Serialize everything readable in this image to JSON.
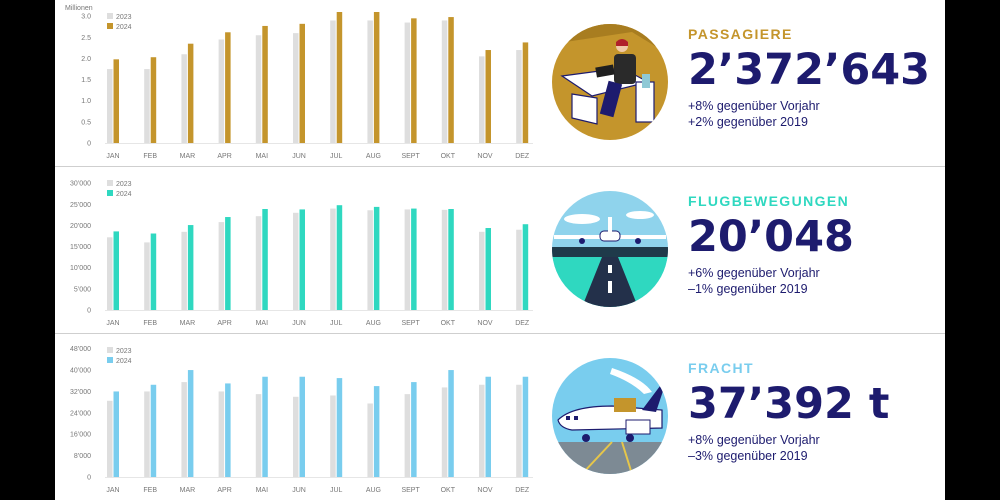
{
  "colors": {
    "year2023": "#dedede",
    "passagiere": "#c4952c",
    "flugbewegungen": "#2fd8c0",
    "fracht": "#79cdee",
    "navy": "#1d1b6e"
  },
  "panels": [
    {
      "kpi": {
        "title": "PASSAGIERE",
        "value": "2’372’643",
        "line1": "+8% gegenüber Vorjahr",
        "line2": "+2% gegenüber 2019"
      }
    },
    {
      "kpi": {
        "title": "FLUGBEWEGUNGEN",
        "value": "20’048",
        "line1": "+6% gegenüber Vorjahr",
        "line2": "–1% gegenüber 2019"
      }
    },
    {
      "kpi": {
        "title": "FRACHT",
        "value": "37’392 t",
        "line1": "+8% gegenüber Vorjahr",
        "line2": "–3% gegenüber 2019"
      }
    }
  ],
  "illustrations": [
    "passenger-illustration",
    "airplane-runway-illustration",
    "cargo-plane-illustration"
  ],
  "chart_data": [
    {
      "type": "bar",
      "unit_label": "Millionen",
      "categories": [
        "JAN",
        "FEB",
        "MAR",
        "APR",
        "MAI",
        "JUN",
        "JUL",
        "AUG",
        "SEPT",
        "OKT",
        "NOV",
        "DEZ"
      ],
      "series": [
        {
          "name": "2023",
          "values": [
            1.75,
            1.75,
            2.1,
            2.45,
            2.55,
            2.6,
            2.9,
            2.9,
            2.85,
            2.9,
            2.05,
            2.2
          ]
        },
        {
          "name": "2024",
          "values": [
            1.98,
            2.03,
            2.35,
            2.62,
            2.77,
            2.82,
            3.1,
            3.1,
            2.95,
            2.98,
            2.2,
            2.38
          ]
        }
      ],
      "yticks": [
        "0",
        "0.5",
        "1.0",
        "1.5",
        "2.0",
        "2.5",
        "3.0"
      ],
      "ylim": [
        0,
        3.1
      ],
      "legend": "top-left"
    },
    {
      "type": "bar",
      "categories": [
        "JAN",
        "FEB",
        "MAR",
        "APR",
        "MAI",
        "JUN",
        "JUL",
        "AUG",
        "SEPT",
        "OKT",
        "NOV",
        "DEZ"
      ],
      "series": [
        {
          "name": "2023",
          "values": [
            17200,
            16000,
            18500,
            20800,
            22200,
            23000,
            24000,
            23600,
            23800,
            23700,
            18500,
            19000
          ]
        },
        {
          "name": "2024",
          "values": [
            18600,
            18100,
            20100,
            22000,
            23900,
            23800,
            24800,
            24400,
            24000,
            23900,
            19400,
            20300
          ]
        }
      ],
      "yticks": [
        "0",
        "5’000",
        "10’000",
        "15’000",
        "20’000",
        "25’000",
        "30’000"
      ],
      "ylim": [
        0,
        31000
      ],
      "legend": "top-left"
    },
    {
      "type": "bar",
      "categories": [
        "JAN",
        "FEB",
        "MAR",
        "APR",
        "MAI",
        "JUN",
        "JUL",
        "AUG",
        "SEPT",
        "OKT",
        "NOV",
        "DEZ"
      ],
      "series": [
        {
          "name": "2023",
          "values": [
            28500,
            32000,
            35500,
            32000,
            31000,
            30000,
            30500,
            27500,
            31000,
            33500,
            34500,
            34500
          ]
        },
        {
          "name": "2024",
          "values": [
            32000,
            34500,
            40000,
            35000,
            37500,
            37500,
            37000,
            34000,
            35500,
            40000,
            37500,
            37500
          ]
        }
      ],
      "yticks": [
        "0",
        "8’000",
        "16’000",
        "24’000",
        "32’000",
        "40’000",
        "48’000"
      ],
      "ylim": [
        0,
        49000
      ],
      "legend": "top-left"
    }
  ]
}
